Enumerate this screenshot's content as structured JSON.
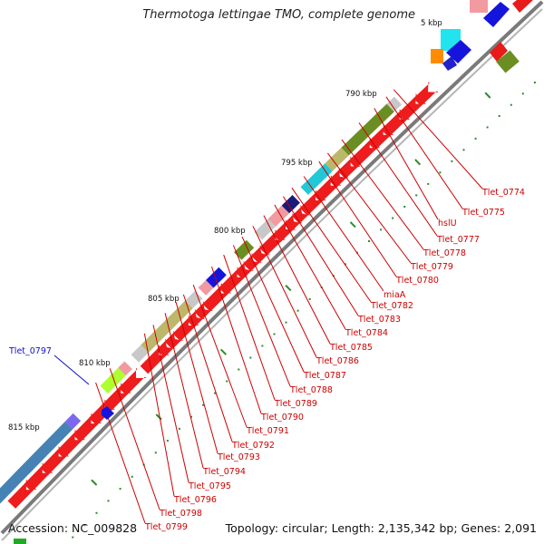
{
  "title": "Thermotoga lettingae TMO, complete genome",
  "footer": {
    "accession": "Accession: NC_009828",
    "summary": "Topology: circular; Length: 2,135,342 bp; Genes: 2,091"
  },
  "kbp_labels": [
    "5 kbp",
    "790 kbp",
    "795 kbp",
    "800 kbp",
    "805 kbp",
    "810 kbp",
    "815 kbp"
  ],
  "gene_labels": [
    "Tlet_0774",
    "Tlet_0775",
    "hslU",
    "Tlet_0777",
    "Tlet_0778",
    "Tlet_0779",
    "Tlet_0780",
    "miaA",
    "Tlet_0782",
    "Tlet_0783",
    "Tlet_0784",
    "Tlet_0785",
    "Tlet_0786",
    "Tlet_0787",
    "Tlet_0788",
    "Tlet_0789",
    "Tlet_0790",
    "Tlet_0791",
    "Tlet_0792",
    "Tlet_0793",
    "Tlet_0794",
    "Tlet_0795",
    "Tlet_0796",
    "Tlet_0798",
    "Tlet_0799"
  ],
  "highlight_label": "Tlet_0797",
  "colors": {
    "gene_forward": "#ee1c1c",
    "gene_highlight": "#1111dd",
    "label_red": "#cc0000",
    "label_blue": "#1111cc",
    "backbone": "#888888",
    "tick": "#2e8b2e"
  }
}
